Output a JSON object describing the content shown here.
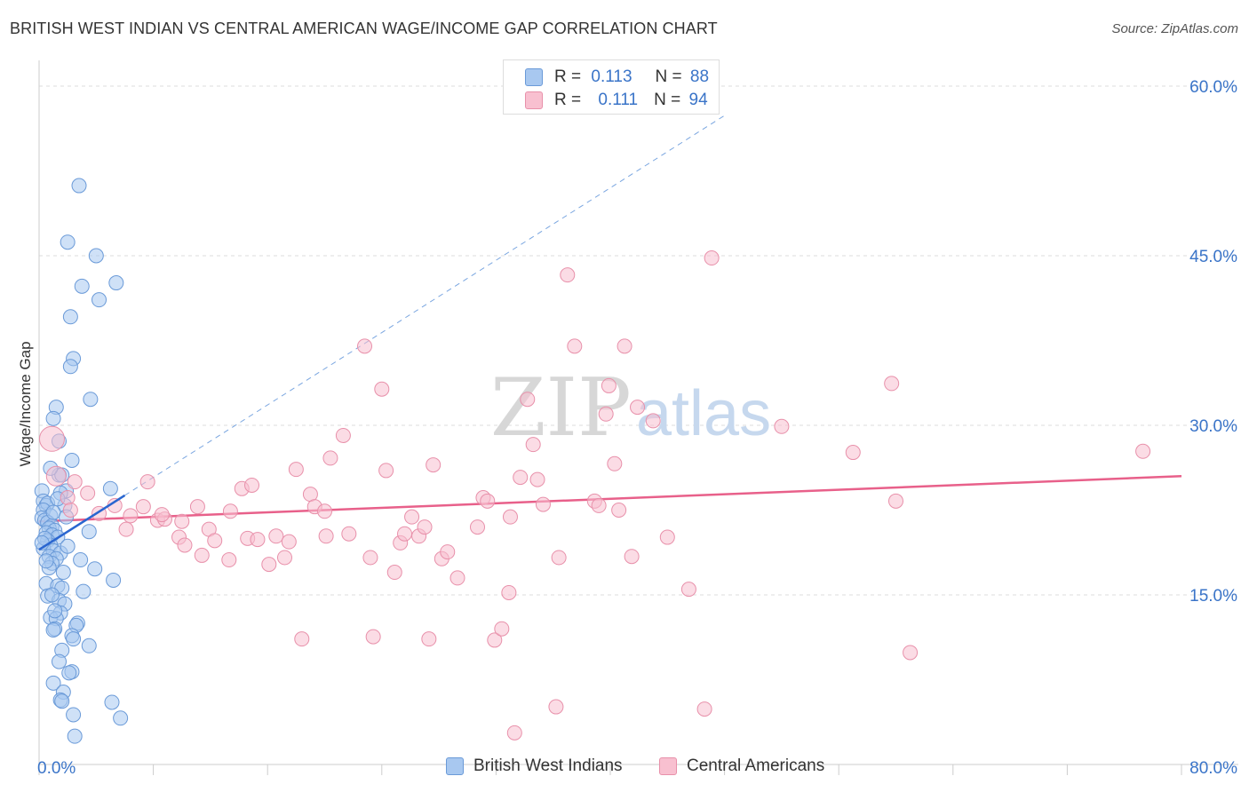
{
  "title": "BRITISH WEST INDIAN VS CENTRAL AMERICAN WAGE/INCOME GAP CORRELATION CHART",
  "source": "Source: ZipAtlas.com",
  "watermark": {
    "zip": "ZIP",
    "atlas": "atlas"
  },
  "legend_top": [
    {
      "r_label": "R =",
      "r_value": "0.113",
      "n_label": "N =",
      "n_value": "88",
      "color": "#a8c8f0",
      "border": "#6a9ad8"
    },
    {
      "r_label": "R =",
      "r_value": "0.111",
      "n_label": "N =",
      "n_value": "94",
      "color": "#f8c0d0",
      "border": "#e890aa"
    }
  ],
  "legend_bottom": [
    {
      "label": "British West Indians",
      "color": "#a8c8f0",
      "border": "#6a9ad8"
    },
    {
      "label": "Central Americans",
      "color": "#f8c0d0",
      "border": "#e890aa"
    }
  ],
  "chart_data": {
    "type": "scatter",
    "title": "BRITISH WEST INDIAN VS CENTRAL AMERICAN WAGE/INCOME GAP CORRELATION CHART",
    "xlabel": "",
    "ylabel": "Wage/Income Gap",
    "xlim": [
      0,
      80
    ],
    "ylim": [
      0,
      62
    ],
    "x_tick_labels": [
      "0.0%",
      "80.0%"
    ],
    "y_ticks": [
      15,
      30,
      45,
      60
    ],
    "y_tick_labels": [
      "15.0%",
      "30.0%",
      "45.0%",
      "60.0%"
    ],
    "grid": true,
    "series": [
      {
        "name": "British West Indians",
        "color": "#a8c8f0",
        "stroke": "#6a9ad8",
        "trend_color": "#2a66d0",
        "trend": {
          "x0": 0,
          "y0": 19.0,
          "x1": 6.0,
          "y1": 23.8,
          "dash_to_x": 48.0
        },
        "points": [
          [
            2.8,
            51.2
          ],
          [
            2.0,
            46.2
          ],
          [
            4.0,
            45.0
          ],
          [
            5.4,
            42.6
          ],
          [
            3.0,
            42.3
          ],
          [
            4.2,
            41.1
          ],
          [
            2.2,
            39.6
          ],
          [
            2.4,
            35.9
          ],
          [
            2.2,
            35.2
          ],
          [
            3.6,
            32.3
          ],
          [
            1.2,
            31.6
          ],
          [
            1.0,
            30.6
          ],
          [
            1.4,
            28.6
          ],
          [
            2.3,
            26.9
          ],
          [
            1.4,
            25.6
          ],
          [
            1.6,
            25.6
          ],
          [
            1.9,
            24.2
          ],
          [
            1.5,
            24.0
          ],
          [
            5.0,
            24.4
          ],
          [
            0.2,
            24.2
          ],
          [
            0.3,
            23.3
          ],
          [
            0.5,
            22.9
          ],
          [
            0.6,
            23.1
          ],
          [
            1.8,
            22.9
          ],
          [
            0.3,
            22.5
          ],
          [
            0.8,
            22.0
          ],
          [
            0.2,
            21.8
          ],
          [
            0.4,
            21.6
          ],
          [
            0.6,
            21.4
          ],
          [
            0.9,
            21.1
          ],
          [
            0.7,
            20.9
          ],
          [
            1.1,
            20.7
          ],
          [
            0.5,
            20.5
          ],
          [
            0.9,
            20.3
          ],
          [
            1.3,
            20.1
          ],
          [
            3.5,
            20.6
          ],
          [
            0.6,
            19.8
          ],
          [
            0.8,
            19.4
          ],
          [
            0.3,
            19.1
          ],
          [
            1.0,
            18.9
          ],
          [
            1.5,
            18.7
          ],
          [
            0.7,
            18.4
          ],
          [
            1.2,
            18.2
          ],
          [
            2.9,
            18.1
          ],
          [
            0.9,
            17.8
          ],
          [
            1.7,
            17.0
          ],
          [
            5.2,
            16.3
          ],
          [
            0.5,
            16.0
          ],
          [
            1.3,
            15.8
          ],
          [
            1.6,
            15.6
          ],
          [
            3.1,
            15.3
          ],
          [
            0.6,
            14.9
          ],
          [
            1.4,
            14.5
          ],
          [
            1.8,
            14.2
          ],
          [
            1.5,
            13.4
          ],
          [
            0.8,
            13.0
          ],
          [
            1.2,
            12.9
          ],
          [
            2.7,
            12.5
          ],
          [
            2.6,
            12.3
          ],
          [
            1.1,
            12.0
          ],
          [
            1.0,
            11.9
          ],
          [
            2.3,
            11.4
          ],
          [
            2.4,
            11.1
          ],
          [
            3.5,
            10.5
          ],
          [
            1.6,
            10.1
          ],
          [
            1.4,
            9.1
          ],
          [
            2.3,
            8.2
          ],
          [
            2.1,
            8.1
          ],
          [
            1.0,
            7.2
          ],
          [
            1.7,
            6.4
          ],
          [
            1.5,
            5.7
          ],
          [
            1.6,
            5.6
          ],
          [
            5.1,
            5.5
          ],
          [
            2.4,
            4.4
          ],
          [
            5.7,
            4.1
          ],
          [
            2.5,
            2.5
          ],
          [
            1.0,
            22.3
          ],
          [
            0.4,
            20.0
          ],
          [
            0.7,
            17.4
          ],
          [
            1.9,
            21.9
          ],
          [
            0.2,
            19.6
          ],
          [
            1.3,
            23.5
          ],
          [
            0.9,
            15.0
          ],
          [
            2.0,
            19.3
          ],
          [
            0.5,
            18.0
          ],
          [
            1.1,
            13.6
          ],
          [
            3.9,
            17.3
          ],
          [
            0.8,
            26.2
          ]
        ]
      },
      {
        "name": "Central Americans",
        "color": "#f8c0d0",
        "stroke": "#e890aa",
        "trend_color": "#e8608a",
        "trend": {
          "x0": 0,
          "y0": 21.5,
          "x1": 80.0,
          "y1": 25.5
        },
        "points": [
          [
            0.9,
            28.8
          ],
          [
            1.2,
            25.5
          ],
          [
            2.5,
            25.0
          ],
          [
            2.0,
            23.6
          ],
          [
            3.4,
            24.0
          ],
          [
            5.3,
            22.9
          ],
          [
            2.2,
            22.5
          ],
          [
            4.2,
            22.2
          ],
          [
            6.4,
            22.0
          ],
          [
            6.1,
            20.8
          ],
          [
            7.6,
            25.0
          ],
          [
            7.3,
            22.8
          ],
          [
            8.3,
            21.6
          ],
          [
            8.8,
            21.7
          ],
          [
            8.6,
            22.1
          ],
          [
            9.8,
            20.1
          ],
          [
            10.2,
            19.4
          ],
          [
            11.1,
            22.8
          ],
          [
            11.4,
            18.5
          ],
          [
            11.9,
            20.8
          ],
          [
            12.3,
            19.8
          ],
          [
            13.3,
            18.1
          ],
          [
            13.4,
            22.4
          ],
          [
            14.2,
            24.4
          ],
          [
            14.9,
            24.7
          ],
          [
            14.6,
            20.0
          ],
          [
            15.3,
            19.9
          ],
          [
            16.1,
            17.7
          ],
          [
            16.6,
            20.2
          ],
          [
            17.2,
            18.3
          ],
          [
            17.5,
            19.7
          ],
          [
            18.0,
            26.1
          ],
          [
            18.4,
            11.1
          ],
          [
            19.0,
            23.9
          ],
          [
            19.3,
            22.8
          ],
          [
            20.1,
            20.2
          ],
          [
            20.4,
            27.1
          ],
          [
            21.3,
            29.1
          ],
          [
            21.7,
            20.4
          ],
          [
            22.8,
            37.0
          ],
          [
            23.2,
            18.3
          ],
          [
            23.4,
            11.3
          ],
          [
            24.0,
            33.2
          ],
          [
            24.3,
            26.0
          ],
          [
            24.9,
            17.0
          ],
          [
            25.3,
            19.6
          ],
          [
            25.6,
            20.4
          ],
          [
            26.1,
            21.9
          ],
          [
            26.6,
            20.2
          ],
          [
            27.3,
            11.1
          ],
          [
            27.6,
            26.5
          ],
          [
            28.2,
            18.2
          ],
          [
            28.6,
            18.8
          ],
          [
            29.3,
            16.5
          ],
          [
            30.7,
            21.0
          ],
          [
            31.1,
            23.6
          ],
          [
            31.4,
            23.3
          ],
          [
            31.9,
            11.0
          ],
          [
            32.4,
            12.0
          ],
          [
            32.9,
            15.2
          ],
          [
            33.3,
            2.8
          ],
          [
            33.7,
            25.4
          ],
          [
            34.2,
            32.3
          ],
          [
            34.6,
            28.3
          ],
          [
            34.9,
            25.2
          ],
          [
            35.3,
            23.0
          ],
          [
            36.4,
            18.3
          ],
          [
            36.2,
            5.1
          ],
          [
            37.0,
            43.3
          ],
          [
            37.5,
            37.0
          ],
          [
            38.9,
            23.3
          ],
          [
            39.2,
            22.9
          ],
          [
            39.7,
            31.0
          ],
          [
            39.9,
            33.5
          ],
          [
            40.3,
            26.6
          ],
          [
            41.0,
            37.0
          ],
          [
            41.5,
            18.4
          ],
          [
            41.9,
            31.6
          ],
          [
            43.0,
            30.4
          ],
          [
            45.5,
            15.5
          ],
          [
            46.6,
            4.9
          ],
          [
            47.1,
            44.8
          ],
          [
            52.0,
            29.9
          ],
          [
            57.0,
            27.6
          ],
          [
            59.7,
            33.7
          ],
          [
            60.0,
            23.3
          ],
          [
            61.0,
            9.9
          ],
          [
            77.3,
            27.7
          ],
          [
            10.0,
            21.5
          ],
          [
            27.0,
            21.0
          ],
          [
            33.0,
            21.9
          ],
          [
            40.6,
            22.5
          ],
          [
            20.0,
            22.4
          ],
          [
            44.0,
            20.1
          ]
        ]
      }
    ]
  }
}
